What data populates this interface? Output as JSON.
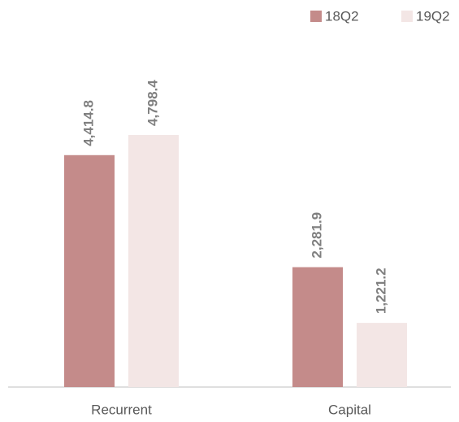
{
  "chart_data": {
    "type": "bar",
    "categories": [
      "Recurrent",
      "Capital"
    ],
    "series": [
      {
        "name": "18Q2",
        "color": "#c48b8a",
        "values": [
          4414.8,
          2281.9
        ],
        "value_labels": [
          "4,414.8",
          "2,281.9"
        ]
      },
      {
        "name": "19Q2",
        "color": "#f3e6e5",
        "values": [
          4798.4,
          1221.2
        ],
        "value_labels": [
          "4,798.4",
          "1,221.2"
        ]
      }
    ],
    "legend": "top-right"
  }
}
